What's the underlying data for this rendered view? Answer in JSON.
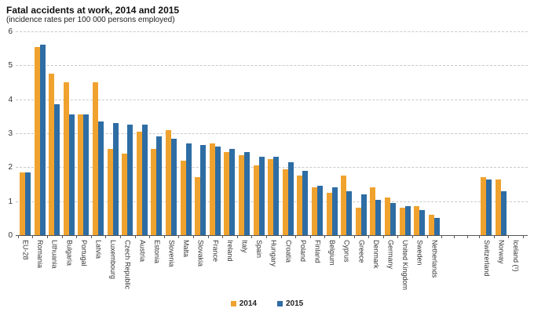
{
  "header": {
    "title": "Fatal accidents at work, 2014 and 2015",
    "subtitle": "(incidence rates per 100 000 persons employed)"
  },
  "colors": {
    "series_2014": "#F0A22E",
    "series_2015": "#2E6DA4",
    "gridline": "#C9C9C9",
    "axis": "#555555",
    "text": "#333333"
  },
  "chart_data": {
    "type": "bar",
    "title": "Fatal accidents at work, 2014 and 2015",
    "subtitle": "(incidence rates per 100 000 persons employed)",
    "categories": [
      "EU-28",
      "Romania",
      "Lithuania",
      "Bulgaria",
      "Portugal",
      "Latvia",
      "Luxembourg",
      "Czech Republic",
      "Austria",
      "Estonia",
      "Slovenia",
      "Malta",
      "Slovakia",
      "France",
      "Ireland",
      "Italy",
      "Spain",
      "Hungary",
      "Croatia",
      "Poland",
      "Finland",
      "Belgium",
      "Cyprus",
      "Greece",
      "Denmark",
      "Germany",
      "United Kingdom",
      "Sweden",
      "Netherlands",
      "Switzerland",
      "Norway",
      "Iceland (¹)"
    ],
    "series": [
      {
        "name": "2014",
        "color": "#F0A22E",
        "values": [
          1.85,
          5.55,
          4.75,
          4.5,
          3.55,
          4.5,
          2.55,
          2.4,
          3.05,
          2.55,
          3.1,
          2.2,
          1.7,
          2.7,
          2.45,
          2.35,
          2.05,
          2.25,
          1.95,
          1.75,
          1.4,
          1.25,
          1.75,
          0.8,
          1.4,
          1.1,
          0.8,
          0.85,
          0.6,
          1.7,
          1.65,
          null
        ]
      },
      {
        "name": "2015",
        "color": "#2E6DA4",
        "values": [
          1.85,
          5.6,
          3.85,
          3.55,
          3.55,
          3.35,
          3.3,
          3.25,
          3.25,
          2.9,
          2.85,
          2.7,
          2.65,
          2.6,
          2.55,
          2.45,
          2.3,
          2.3,
          2.15,
          1.9,
          1.45,
          1.4,
          1.3,
          1.2,
          1.05,
          0.95,
          0.85,
          0.75,
          0.5,
          1.65,
          1.3,
          null
        ]
      }
    ],
    "xlabel": "",
    "ylabel": "",
    "ylim": [
      0,
      6
    ],
    "yticks": [
      0,
      1,
      2,
      3,
      4,
      5,
      6
    ],
    "grid": "horizontal dashed",
    "legend_position": "bottom center",
    "category_label_rotation": "vertical (reads top to bottom)",
    "layout_note": "gap separates EU countries (EU-28..Netherlands) from Switzerland, Norway and Iceland",
    "annotations": [
      "Iceland (¹): no bars shown"
    ]
  }
}
